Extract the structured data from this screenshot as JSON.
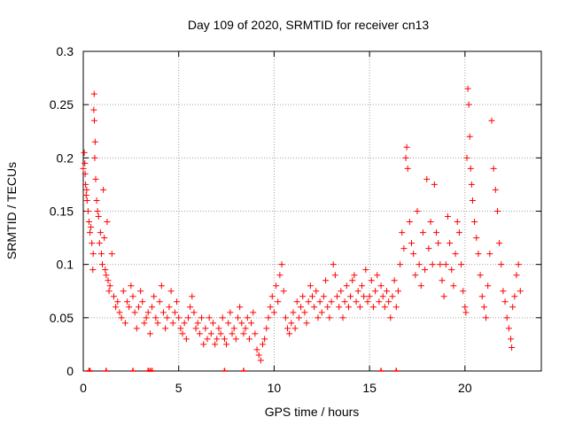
{
  "chart_data": {
    "type": "scatter",
    "title": "Day 109 of 2020, SRMTID for receiver cn13",
    "xlabel": "GPS time / hours",
    "ylabel": "SRMTID / TECUs",
    "xlim": [
      0,
      24
    ],
    "ylim": [
      0,
      0.3
    ],
    "xticks": [
      0,
      5,
      10,
      15,
      20
    ],
    "xtick_labels": [
      "0",
      "5",
      "10",
      "15",
      "20"
    ],
    "yticks": [
      0,
      0.05,
      0.1,
      0.15,
      0.2,
      0.25,
      0.3
    ],
    "ytick_labels": [
      "0",
      "0.05",
      "0.1",
      "0.15",
      "0.2",
      "0.25",
      "0.3"
    ],
    "grid": true,
    "marker": "+",
    "series": [
      {
        "name": "SRMTID",
        "color": "#ff0000",
        "points": [
          [
            0.0,
            0.19
          ],
          [
            0.05,
            0.205
          ],
          [
            0.08,
            0.195
          ],
          [
            0.1,
            0.185
          ],
          [
            0.12,
            0.175
          ],
          [
            0.15,
            0.165
          ],
          [
            0.18,
            0.17
          ],
          [
            0.2,
            0.16
          ],
          [
            0.25,
            0.15
          ],
          [
            0.3,
            0.14
          ],
          [
            0.35,
            0.13
          ],
          [
            0.4,
            0.135
          ],
          [
            0.45,
            0.12
          ],
          [
            0.5,
            0.095
          ],
          [
            0.52,
            0.11
          ],
          [
            0.55,
            0.245
          ],
          [
            0.57,
            0.26
          ],
          [
            0.58,
            0.235
          ],
          [
            0.6,
            0.2
          ],
          [
            0.62,
            0.215
          ],
          [
            0.65,
            0.18
          ],
          [
            0.7,
            0.16
          ],
          [
            0.75,
            0.15
          ],
          [
            0.8,
            0.145
          ],
          [
            0.85,
            0.12
          ],
          [
            0.9,
            0.13
          ],
          [
            0.95,
            0.11
          ],
          [
            1.0,
            0.1
          ],
          [
            1.05,
            0.17
          ],
          [
            1.1,
            0.125
          ],
          [
            1.15,
            0.095
          ],
          [
            1.2,
            0.09
          ],
          [
            1.25,
            0.14
          ],
          [
            1.3,
            0.085
          ],
          [
            1.35,
            0.075
          ],
          [
            1.4,
            0.08
          ],
          [
            1.5,
            0.11
          ],
          [
            1.6,
            0.07
          ],
          [
            1.7,
            0.06
          ],
          [
            1.8,
            0.065
          ],
          [
            1.9,
            0.055
          ],
          [
            2.0,
            0.05
          ],
          [
            2.1,
            0.075
          ],
          [
            2.2,
            0.045
          ],
          [
            2.3,
            0.065
          ],
          [
            2.4,
            0.06
          ],
          [
            2.5,
            0.08
          ],
          [
            2.6,
            0.07
          ],
          [
            2.7,
            0.055
          ],
          [
            2.8,
            0.04
          ],
          [
            2.9,
            0.06
          ],
          [
            3.0,
            0.075
          ],
          [
            3.1,
            0.065
          ],
          [
            3.2,
            0.045
          ],
          [
            3.3,
            0.05
          ],
          [
            3.4,
            0.055
          ],
          [
            3.5,
            0.035
          ],
          [
            3.6,
            0.06
          ],
          [
            3.7,
            0.07
          ],
          [
            3.8,
            0.05
          ],
          [
            3.9,
            0.045
          ],
          [
            4.0,
            0.065
          ],
          [
            4.1,
            0.08
          ],
          [
            4.2,
            0.055
          ],
          [
            4.3,
            0.04
          ],
          [
            4.4,
            0.05
          ],
          [
            4.5,
            0.06
          ],
          [
            4.6,
            0.075
          ],
          [
            4.7,
            0.045
          ],
          [
            4.8,
            0.055
          ],
          [
            4.9,
            0.065
          ],
          [
            5.0,
            0.05
          ],
          [
            5.1,
            0.04
          ],
          [
            5.2,
            0.035
          ],
          [
            5.3,
            0.045
          ],
          [
            5.4,
            0.03
          ],
          [
            5.5,
            0.05
          ],
          [
            5.6,
            0.06
          ],
          [
            5.7,
            0.07
          ],
          [
            5.8,
            0.055
          ],
          [
            5.9,
            0.04
          ],
          [
            6.0,
            0.045
          ],
          [
            6.1,
            0.035
          ],
          [
            6.2,
            0.05
          ],
          [
            6.3,
            0.025
          ],
          [
            6.4,
            0.04
          ],
          [
            6.5,
            0.03
          ],
          [
            6.6,
            0.05
          ],
          [
            6.7,
            0.035
          ],
          [
            6.8,
            0.045
          ],
          [
            6.9,
            0.025
          ],
          [
            7.0,
            0.03
          ],
          [
            7.1,
            0.04
          ],
          [
            7.2,
            0.035
          ],
          [
            7.3,
            0.05
          ],
          [
            7.4,
            0.03
          ],
          [
            7.5,
            0.025
          ],
          [
            7.6,
            0.045
          ],
          [
            7.7,
            0.055
          ],
          [
            7.8,
            0.035
          ],
          [
            7.9,
            0.04
          ],
          [
            8.0,
            0.03
          ],
          [
            8.1,
            0.05
          ],
          [
            8.2,
            0.06
          ],
          [
            8.3,
            0.045
          ],
          [
            8.4,
            0.035
          ],
          [
            8.5,
            0.04
          ],
          [
            8.6,
            0.05
          ],
          [
            8.7,
            0.03
          ],
          [
            8.8,
            0.045
          ],
          [
            8.9,
            0.055
          ],
          [
            9.0,
            0.035
          ],
          [
            9.1,
            0.02
          ],
          [
            9.2,
            0.015
          ],
          [
            9.3,
            0.01
          ],
          [
            9.4,
            0.025
          ],
          [
            9.5,
            0.03
          ],
          [
            9.6,
            0.04
          ],
          [
            9.7,
            0.05
          ],
          [
            9.8,
            0.06
          ],
          [
            9.9,
            0.07
          ],
          [
            10.0,
            0.055
          ],
          [
            10.1,
            0.08
          ],
          [
            10.2,
            0.065
          ],
          [
            10.3,
            0.09
          ],
          [
            10.4,
            0.1
          ],
          [
            10.5,
            0.075
          ],
          [
            10.6,
            0.05
          ],
          [
            10.7,
            0.04
          ],
          [
            10.8,
            0.035
          ],
          [
            10.9,
            0.045
          ],
          [
            11.0,
            0.055
          ],
          [
            11.1,
            0.04
          ],
          [
            11.2,
            0.065
          ],
          [
            11.3,
            0.05
          ],
          [
            11.4,
            0.06
          ],
          [
            11.5,
            0.07
          ],
          [
            11.6,
            0.055
          ],
          [
            11.7,
            0.045
          ],
          [
            11.8,
            0.065
          ],
          [
            11.9,
            0.08
          ],
          [
            12.0,
            0.07
          ],
          [
            12.1,
            0.06
          ],
          [
            12.2,
            0.075
          ],
          [
            12.3,
            0.05
          ],
          [
            12.4,
            0.065
          ],
          [
            12.5,
            0.055
          ],
          [
            12.6,
            0.07
          ],
          [
            12.7,
            0.085
          ],
          [
            12.8,
            0.06
          ],
          [
            12.9,
            0.05
          ],
          [
            13.0,
            0.065
          ],
          [
            13.1,
            0.1
          ],
          [
            13.2,
            0.09
          ],
          [
            13.3,
            0.07
          ],
          [
            13.4,
            0.06
          ],
          [
            13.5,
            0.075
          ],
          [
            13.6,
            0.05
          ],
          [
            13.7,
            0.065
          ],
          [
            13.8,
            0.08
          ],
          [
            13.9,
            0.06
          ],
          [
            14.0,
            0.07
          ],
          [
            14.1,
            0.085
          ],
          [
            14.2,
            0.09
          ],
          [
            14.3,
            0.065
          ],
          [
            14.4,
            0.075
          ],
          [
            14.5,
            0.06
          ],
          [
            14.6,
            0.08
          ],
          [
            14.7,
            0.07
          ],
          [
            14.8,
            0.095
          ],
          [
            14.9,
            0.065
          ],
          [
            15.0,
            0.07
          ],
          [
            15.1,
            0.085
          ],
          [
            15.2,
            0.06
          ],
          [
            15.3,
            0.075
          ],
          [
            15.4,
            0.09
          ],
          [
            15.5,
            0.065
          ],
          [
            15.6,
            0.08
          ],
          [
            15.7,
            0.07
          ],
          [
            15.8,
            0.06
          ],
          [
            15.9,
            0.075
          ],
          [
            16.0,
            0.065
          ],
          [
            16.1,
            0.05
          ],
          [
            16.2,
            0.07
          ],
          [
            16.3,
            0.085
          ],
          [
            16.4,
            0.06
          ],
          [
            16.5,
            0.075
          ],
          [
            16.6,
            0.1
          ],
          [
            16.7,
            0.13
          ],
          [
            16.8,
            0.115
          ],
          [
            16.9,
            0.2
          ],
          [
            16.95,
            0.21
          ],
          [
            17.0,
            0.19
          ],
          [
            17.1,
            0.14
          ],
          [
            17.2,
            0.12
          ],
          [
            17.3,
            0.11
          ],
          [
            17.4,
            0.09
          ],
          [
            17.5,
            0.15
          ],
          [
            17.6,
            0.1
          ],
          [
            17.7,
            0.08
          ],
          [
            17.8,
            0.13
          ],
          [
            17.9,
            0.095
          ],
          [
            18.0,
            0.18
          ],
          [
            18.1,
            0.115
          ],
          [
            18.2,
            0.14
          ],
          [
            18.3,
            0.1
          ],
          [
            18.4,
            0.175
          ],
          [
            18.5,
            0.13
          ],
          [
            18.6,
            0.12
          ],
          [
            18.7,
            0.1
          ],
          [
            18.8,
            0.085
          ],
          [
            18.9,
            0.07
          ],
          [
            19.0,
            0.1
          ],
          [
            19.1,
            0.145
          ],
          [
            19.2,
            0.12
          ],
          [
            19.3,
            0.095
          ],
          [
            19.4,
            0.08
          ],
          [
            19.5,
            0.11
          ],
          [
            19.6,
            0.14
          ],
          [
            19.7,
            0.13
          ],
          [
            19.8,
            0.1
          ],
          [
            19.9,
            0.075
          ],
          [
            20.0,
            0.06
          ],
          [
            20.05,
            0.055
          ],
          [
            20.1,
            0.2
          ],
          [
            20.15,
            0.265
          ],
          [
            20.2,
            0.25
          ],
          [
            20.25,
            0.22
          ],
          [
            20.3,
            0.19
          ],
          [
            20.35,
            0.175
          ],
          [
            20.4,
            0.16
          ],
          [
            20.5,
            0.14
          ],
          [
            20.6,
            0.125
          ],
          [
            20.7,
            0.11
          ],
          [
            20.8,
            0.09
          ],
          [
            20.9,
            0.07
          ],
          [
            21.0,
            0.06
          ],
          [
            21.1,
            0.05
          ],
          [
            21.2,
            0.08
          ],
          [
            21.3,
            0.11
          ],
          [
            21.4,
            0.235
          ],
          [
            21.5,
            0.19
          ],
          [
            21.6,
            0.17
          ],
          [
            21.7,
            0.15
          ],
          [
            21.8,
            0.12
          ],
          [
            21.9,
            0.1
          ],
          [
            22.0,
            0.075
          ],
          [
            22.1,
            0.065
          ],
          [
            22.2,
            0.05
          ],
          [
            22.3,
            0.04
          ],
          [
            22.4,
            0.03
          ],
          [
            22.45,
            0.022
          ],
          [
            22.5,
            0.06
          ],
          [
            22.6,
            0.07
          ],
          [
            22.7,
            0.09
          ],
          [
            22.8,
            0.1
          ],
          [
            22.9,
            0.075
          ]
        ]
      }
    ],
    "zero_markers_x": [
      0.3,
      0.35,
      1.2,
      2.6,
      3.4,
      3.5,
      3.6,
      7.4,
      8.4,
      15.6,
      16.4
    ]
  }
}
